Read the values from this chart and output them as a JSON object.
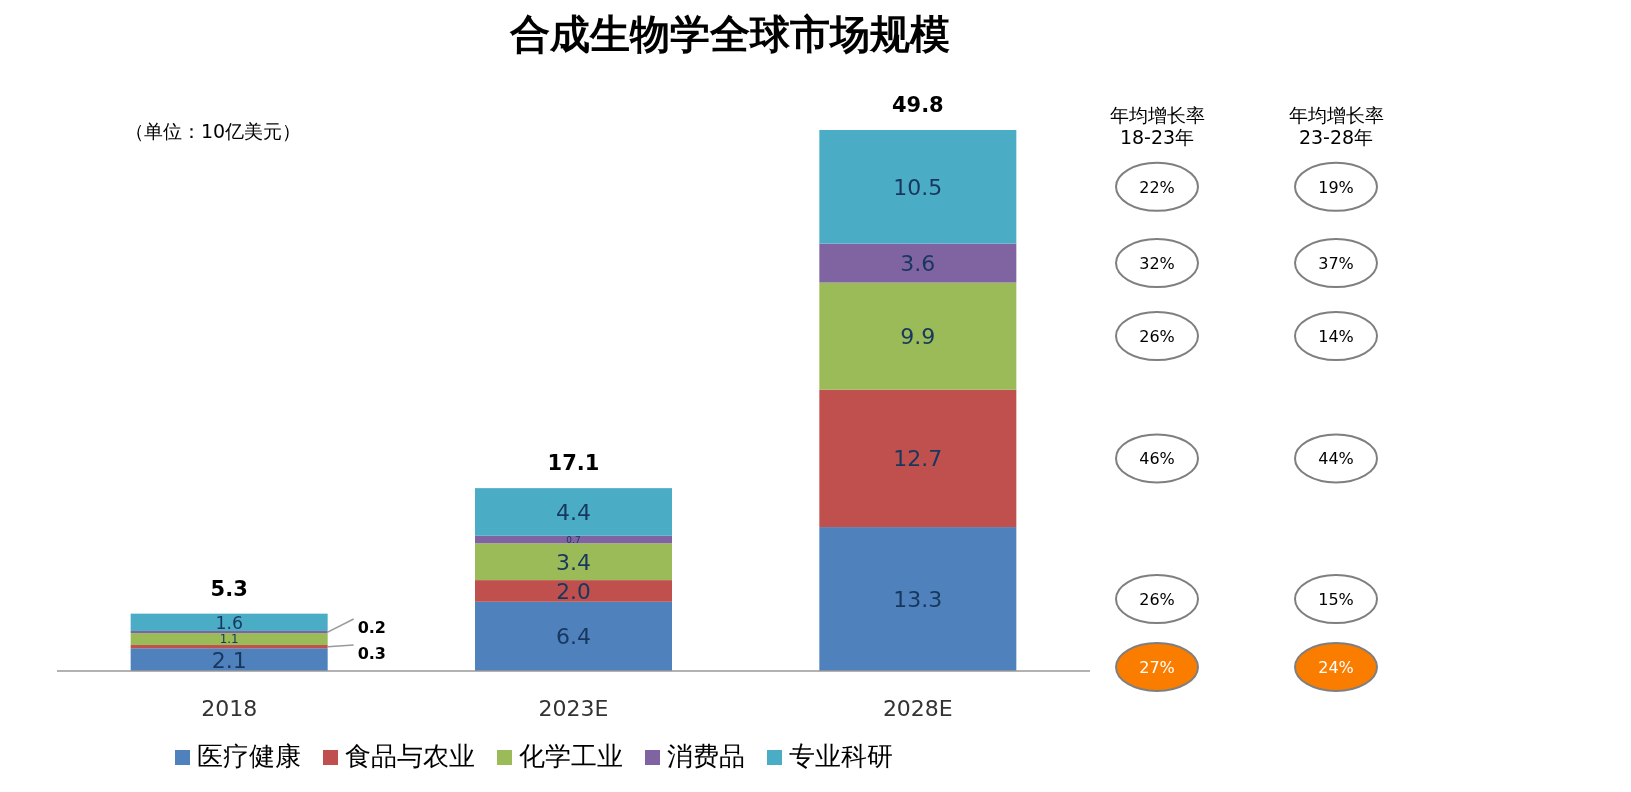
{
  "chart_data": {
    "type": "bar",
    "stacked": true,
    "title": "合成生物学全球市场规模",
    "categories": [
      "2018",
      "2023E",
      "2028E"
    ],
    "series": [
      {
        "name": "医疗健康",
        "color": "#4f81bd",
        "values": [
          2.1,
          6.4,
          13.3
        ],
        "value_labels": [
          "2.1",
          "6.4",
          "13.3"
        ]
      },
      {
        "name": "食品与农业",
        "color": "#c0504d",
        "values": [
          0.3,
          2.0,
          12.7
        ],
        "value_labels": [
          "0.3",
          "2.0",
          "12.7"
        ]
      },
      {
        "name": "化学工业",
        "color": "#9bbb59",
        "values": [
          1.1,
          3.4,
          9.9
        ],
        "value_labels": [
          "1.1",
          "3.4",
          "9.9"
        ]
      },
      {
        "name": "消费品",
        "color": "#8064a2",
        "values": [
          0.2,
          0.7,
          3.6
        ],
        "value_labels": [
          "0.2",
          "0.7",
          "3.6"
        ]
      },
      {
        "name": "专业科研",
        "color": "#4bacc6",
        "values": [
          1.6,
          4.4,
          10.5
        ],
        "value_labels": [
          "1.6",
          "4.4",
          "10.5"
        ]
      }
    ],
    "totals": [
      "5.3",
      "17.1",
      "49.8"
    ],
    "legend": "bottom",
    "annotations": [
      "（单位：10亿美元）",
      "年均增长率\n18-23年",
      "年均增长率\n23-28年",
      "22%",
      "19%",
      "32%",
      "37%",
      "26%",
      "14%",
      "46%",
      "44%",
      "26%",
      "15%",
      "27%",
      "24%"
    ]
  }
}
